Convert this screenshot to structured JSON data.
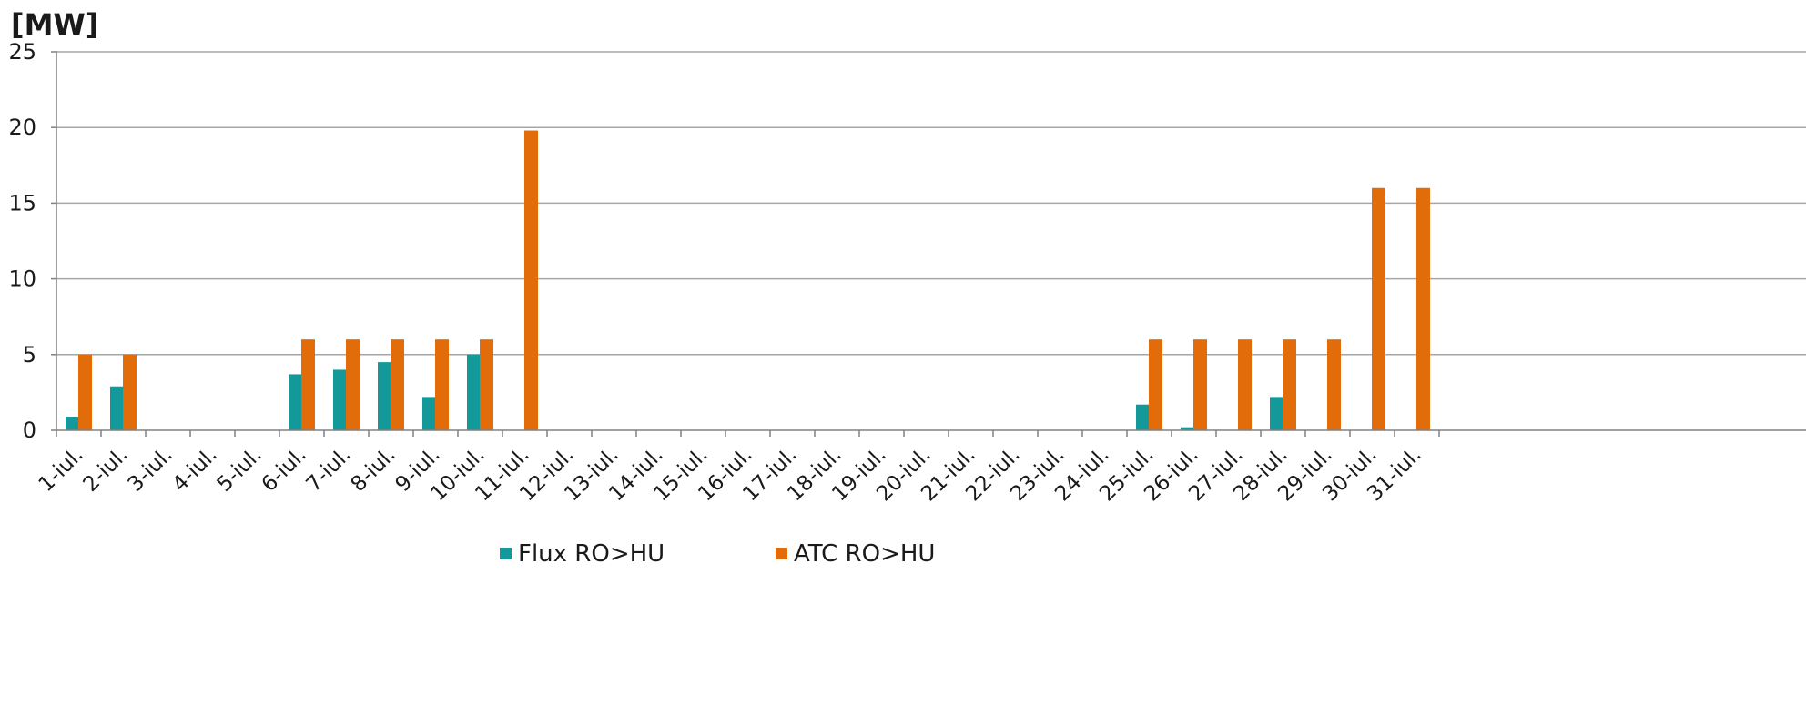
{
  "chart_data": {
    "type": "bar",
    "title": "",
    "ylabel": "[MW]",
    "xlabel": "",
    "ylim": [
      0,
      25
    ],
    "yticks": [
      "0",
      "5",
      "10",
      "15",
      "20",
      "25"
    ],
    "grid": true,
    "legend_position": "bottom",
    "categories": [
      "1-iul.",
      "2-iul.",
      "3-iul.",
      "4-iul.",
      "5-iul.",
      "6-iul.",
      "7-iul.",
      "8-iul.",
      "9-iul.",
      "10-iul.",
      "11-iul.",
      "12-iul.",
      "13-iul.",
      "14-iul.",
      "15-iul.",
      "16-iul.",
      "17-iul.",
      "18-iul.",
      "19-iul.",
      "20-iul.",
      "21-iul.",
      "22-iul.",
      "23-iul.",
      "24-iul.",
      "25-iul.",
      "26-iul.",
      "27-iul.",
      "28-iul.",
      "29-iul.",
      "30-iul.",
      "31-iul."
    ],
    "series": [
      {
        "name": "Flux RO>HU",
        "color": "#14999a",
        "values": [
          0.9,
          2.9,
          0,
          0,
          0,
          3.7,
          4.0,
          4.5,
          2.2,
          5.0,
          0,
          0,
          0,
          0,
          0,
          0,
          0,
          0,
          0,
          0,
          0,
          0,
          0,
          0,
          1.7,
          0.2,
          0,
          2.2,
          0,
          0,
          0
        ]
      },
      {
        "name": "ATC RO>HU",
        "color": "#e36c0a",
        "values": [
          5,
          5,
          0,
          0,
          0,
          6,
          6,
          6,
          6,
          6,
          19.8,
          0,
          0,
          0,
          0,
          0,
          0,
          0,
          0,
          0,
          0,
          0,
          0,
          0,
          6,
          6,
          6,
          6,
          6,
          16,
          16
        ]
      }
    ]
  }
}
